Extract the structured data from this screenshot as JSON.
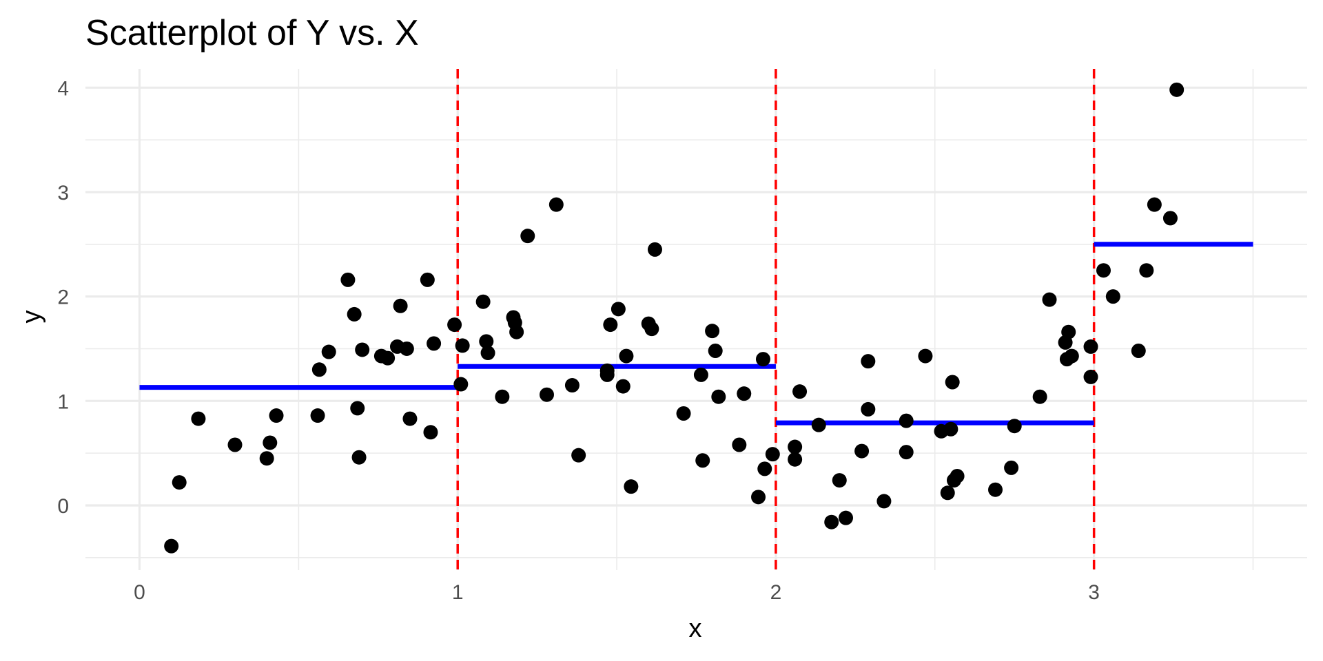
{
  "chart_data": {
    "type": "scatter",
    "title": "Scatterplot of Y vs. X",
    "xlabel": "x",
    "ylabel": "y",
    "xlim": [
      -0.17,
      3.67
    ],
    "ylim": [
      -0.62,
      4.18
    ],
    "x_ticks": [
      0,
      1,
      2,
      3
    ],
    "x_tick_labels": [
      "0",
      "1",
      "2",
      "3"
    ],
    "y_ticks": [
      0,
      1,
      2,
      3,
      4
    ],
    "y_tick_labels": [
      "0",
      "1",
      "2",
      "3",
      "4"
    ],
    "grid": true,
    "colors": {
      "points": "#000000",
      "step_fit": "#0000ff",
      "breakpoints": "#ff0000",
      "grid": "#ebebeb",
      "tick_text": "#4d4d4d"
    },
    "breakpoints": [
      1,
      2,
      3
    ],
    "step_fit": [
      {
        "x0": 0,
        "x1": 1,
        "y": 1.13
      },
      {
        "x0": 1,
        "x1": 2,
        "y": 1.33
      },
      {
        "x0": 2,
        "x1": 3,
        "y": 0.79
      },
      {
        "x0": 3,
        "x1": 3.5,
        "y": 2.5
      }
    ],
    "points": [
      {
        "x": 0.1,
        "y": -0.39
      },
      {
        "x": 0.125,
        "y": 0.22
      },
      {
        "x": 0.185,
        "y": 0.83
      },
      {
        "x": 0.3,
        "y": 0.58
      },
      {
        "x": 0.4,
        "y": 0.45
      },
      {
        "x": 0.41,
        "y": 0.6
      },
      {
        "x": 0.43,
        "y": 0.86
      },
      {
        "x": 0.56,
        "y": 0.86
      },
      {
        "x": 0.565,
        "y": 1.3
      },
      {
        "x": 0.595,
        "y": 1.47
      },
      {
        "x": 0.655,
        "y": 2.16
      },
      {
        "x": 0.675,
        "y": 1.83
      },
      {
        "x": 0.685,
        "y": 0.93
      },
      {
        "x": 0.69,
        "y": 0.46
      },
      {
        "x": 0.7,
        "y": 1.49
      },
      {
        "x": 0.76,
        "y": 1.43
      },
      {
        "x": 0.78,
        "y": 1.41
      },
      {
        "x": 0.81,
        "y": 1.52
      },
      {
        "x": 0.82,
        "y": 1.91
      },
      {
        "x": 0.84,
        "y": 1.5
      },
      {
        "x": 0.85,
        "y": 0.83
      },
      {
        "x": 0.905,
        "y": 2.16
      },
      {
        "x": 0.915,
        "y": 0.7
      },
      {
        "x": 0.925,
        "y": 1.55
      },
      {
        "x": 0.99,
        "y": 1.73
      },
      {
        "x": 1.01,
        "y": 1.16
      },
      {
        "x": 1.015,
        "y": 1.53
      },
      {
        "x": 1.08,
        "y": 1.95
      },
      {
        "x": 1.09,
        "y": 1.57
      },
      {
        "x": 1.095,
        "y": 1.46
      },
      {
        "x": 1.14,
        "y": 1.04
      },
      {
        "x": 1.175,
        "y": 1.8
      },
      {
        "x": 1.18,
        "y": 1.75
      },
      {
        "x": 1.185,
        "y": 1.66
      },
      {
        "x": 1.22,
        "y": 2.58
      },
      {
        "x": 1.28,
        "y": 1.06
      },
      {
        "x": 1.31,
        "y": 2.88
      },
      {
        "x": 1.36,
        "y": 1.15
      },
      {
        "x": 1.38,
        "y": 0.48
      },
      {
        "x": 1.47,
        "y": 1.29
      },
      {
        "x": 1.48,
        "y": 1.73
      },
      {
        "x": 1.47,
        "y": 1.25
      },
      {
        "x": 1.505,
        "y": 1.88
      },
      {
        "x": 1.52,
        "y": 1.14
      },
      {
        "x": 1.53,
        "y": 1.43
      },
      {
        "x": 1.545,
        "y": 0.18
      },
      {
        "x": 1.6,
        "y": 1.74
      },
      {
        "x": 1.61,
        "y": 1.69
      },
      {
        "x": 1.62,
        "y": 2.45
      },
      {
        "x": 1.71,
        "y": 0.88
      },
      {
        "x": 1.765,
        "y": 1.25
      },
      {
        "x": 1.77,
        "y": 0.43
      },
      {
        "x": 1.8,
        "y": 1.67
      },
      {
        "x": 1.81,
        "y": 1.48
      },
      {
        "x": 1.82,
        "y": 1.04
      },
      {
        "x": 1.885,
        "y": 0.58
      },
      {
        "x": 1.9,
        "y": 1.07
      },
      {
        "x": 1.945,
        "y": 0.08
      },
      {
        "x": 1.96,
        "y": 1.4
      },
      {
        "x": 1.965,
        "y": 0.35
      },
      {
        "x": 1.99,
        "y": 0.49
      },
      {
        "x": 2.06,
        "y": 0.56
      },
      {
        "x": 2.06,
        "y": 0.44
      },
      {
        "x": 2.075,
        "y": 1.09
      },
      {
        "x": 2.135,
        "y": 0.77
      },
      {
        "x": 2.175,
        "y": -0.16
      },
      {
        "x": 2.2,
        "y": 0.24
      },
      {
        "x": 2.22,
        "y": -0.12
      },
      {
        "x": 2.27,
        "y": 0.52
      },
      {
        "x": 2.29,
        "y": 1.38
      },
      {
        "x": 2.29,
        "y": 0.92
      },
      {
        "x": 2.34,
        "y": 0.04
      },
      {
        "x": 2.41,
        "y": 0.81
      },
      {
        "x": 2.41,
        "y": 0.51
      },
      {
        "x": 2.47,
        "y": 1.43
      },
      {
        "x": 2.52,
        "y": 0.71
      },
      {
        "x": 2.54,
        "y": 0.12
      },
      {
        "x": 2.55,
        "y": 0.73
      },
      {
        "x": 2.555,
        "y": 1.18
      },
      {
        "x": 2.56,
        "y": 0.24
      },
      {
        "x": 2.57,
        "y": 0.28
      },
      {
        "x": 2.69,
        "y": 0.15
      },
      {
        "x": 2.74,
        "y": 0.36
      },
      {
        "x": 2.75,
        "y": 0.76
      },
      {
        "x": 2.83,
        "y": 1.04
      },
      {
        "x": 2.86,
        "y": 1.97
      },
      {
        "x": 2.91,
        "y": 1.56
      },
      {
        "x": 2.915,
        "y": 1.4
      },
      {
        "x": 2.92,
        "y": 1.66
      },
      {
        "x": 2.93,
        "y": 1.43
      },
      {
        "x": 2.99,
        "y": 1.52
      },
      {
        "x": 2.99,
        "y": 1.23
      },
      {
        "x": 3.03,
        "y": 2.25
      },
      {
        "x": 3.06,
        "y": 2.0
      },
      {
        "x": 3.14,
        "y": 1.48
      },
      {
        "x": 3.165,
        "y": 2.25
      },
      {
        "x": 3.19,
        "y": 2.88
      },
      {
        "x": 3.24,
        "y": 2.75
      },
      {
        "x": 3.26,
        "y": 3.98
      }
    ]
  }
}
